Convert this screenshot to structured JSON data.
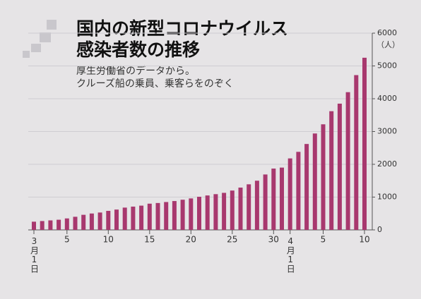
{
  "chart_data": {
    "type": "bar",
    "title": "国内の新型コロナウイルス",
    "title_line2": "感染者数の推移",
    "subtitle": "厚生労働省のデータから。",
    "subtitle_line2": "クルーズ船の乗員、乗客らをのぞく",
    "y_unit": "（人）",
    "categories": [
      "3月1日",
      null,
      null,
      null,
      "5",
      null,
      null,
      null,
      null,
      "10",
      null,
      null,
      null,
      null,
      "15",
      null,
      null,
      null,
      null,
      "20",
      null,
      null,
      null,
      null,
      "25",
      null,
      null,
      null,
      null,
      "30",
      null,
      "4月1日",
      null,
      null,
      null,
      "5",
      null,
      null,
      null,
      null,
      "10"
    ],
    "values": [
      250,
      270,
      290,
      310,
      350,
      400,
      460,
      500,
      530,
      580,
      620,
      680,
      710,
      740,
      800,
      820,
      850,
      880,
      920,
      960,
      1010,
      1050,
      1090,
      1130,
      1200,
      1290,
      1390,
      1500,
      1690,
      1870,
      1900,
      2180,
      2380,
      2620,
      2940,
      3220,
      3620,
      3850,
      4200,
      4720,
      5250
    ],
    "color": "#a8386e",
    "ylim": [
      0,
      6000
    ],
    "yticks": [
      0,
      1000,
      2000,
      3000,
      4000,
      5000,
      6000
    ],
    "grid": true
  }
}
